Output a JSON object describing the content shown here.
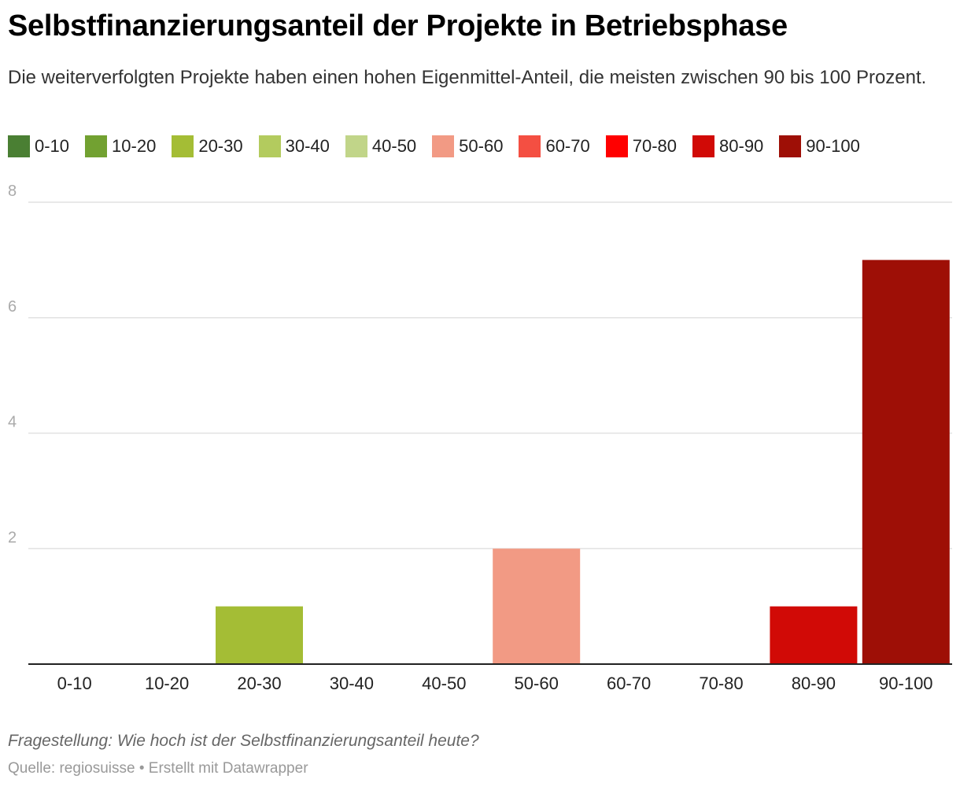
{
  "title": "Selbstfinanzierungsanteil der Projekte in Betriebsphase",
  "subtitle": "Die weiterverfolgten Projekte haben einen hohen Eigenmittel-Anteil, die meisten zwischen 90 bis 100 Prozent.",
  "legend": [
    {
      "label": "0-10",
      "color": "#4a7f33"
    },
    {
      "label": "10-20",
      "color": "#72a131"
    },
    {
      "label": "20-30",
      "color": "#a4bd35"
    },
    {
      "label": "30-40",
      "color": "#b3cb5e"
    },
    {
      "label": "40-50",
      "color": "#c1d589"
    },
    {
      "label": "50-60",
      "color": "#f29a84"
    },
    {
      "label": "60-70",
      "color": "#f44f42"
    },
    {
      "label": "70-80",
      "color": "#ff0000"
    },
    {
      "label": "80-90",
      "color": "#d10a06"
    },
    {
      "label": "90-100",
      "color": "#9e0f06"
    }
  ],
  "chart_data": {
    "type": "bar",
    "categories": [
      "0-10",
      "10-20",
      "20-30",
      "30-40",
      "40-50",
      "50-60",
      "60-70",
      "70-80",
      "80-90",
      "90-100"
    ],
    "values": [
      0,
      0,
      1,
      0,
      0,
      2,
      0,
      0,
      1,
      7
    ],
    "colors": [
      "#4a7f33",
      "#72a131",
      "#a4bd35",
      "#b3cb5e",
      "#c1d589",
      "#f29a84",
      "#f44f42",
      "#ff0000",
      "#d10a06",
      "#9e0f06"
    ],
    "yticks": [
      2,
      4,
      6,
      8
    ],
    "ylim": [
      0,
      8
    ],
    "xlabel": "",
    "ylabel": "",
    "grid": true
  },
  "notes": {
    "question": "Fragestellung: Wie hoch ist der Selbstfinanzierungsanteil heute?",
    "source": "Quelle: regiosuisse • Erstellt mit Datawrapper"
  }
}
